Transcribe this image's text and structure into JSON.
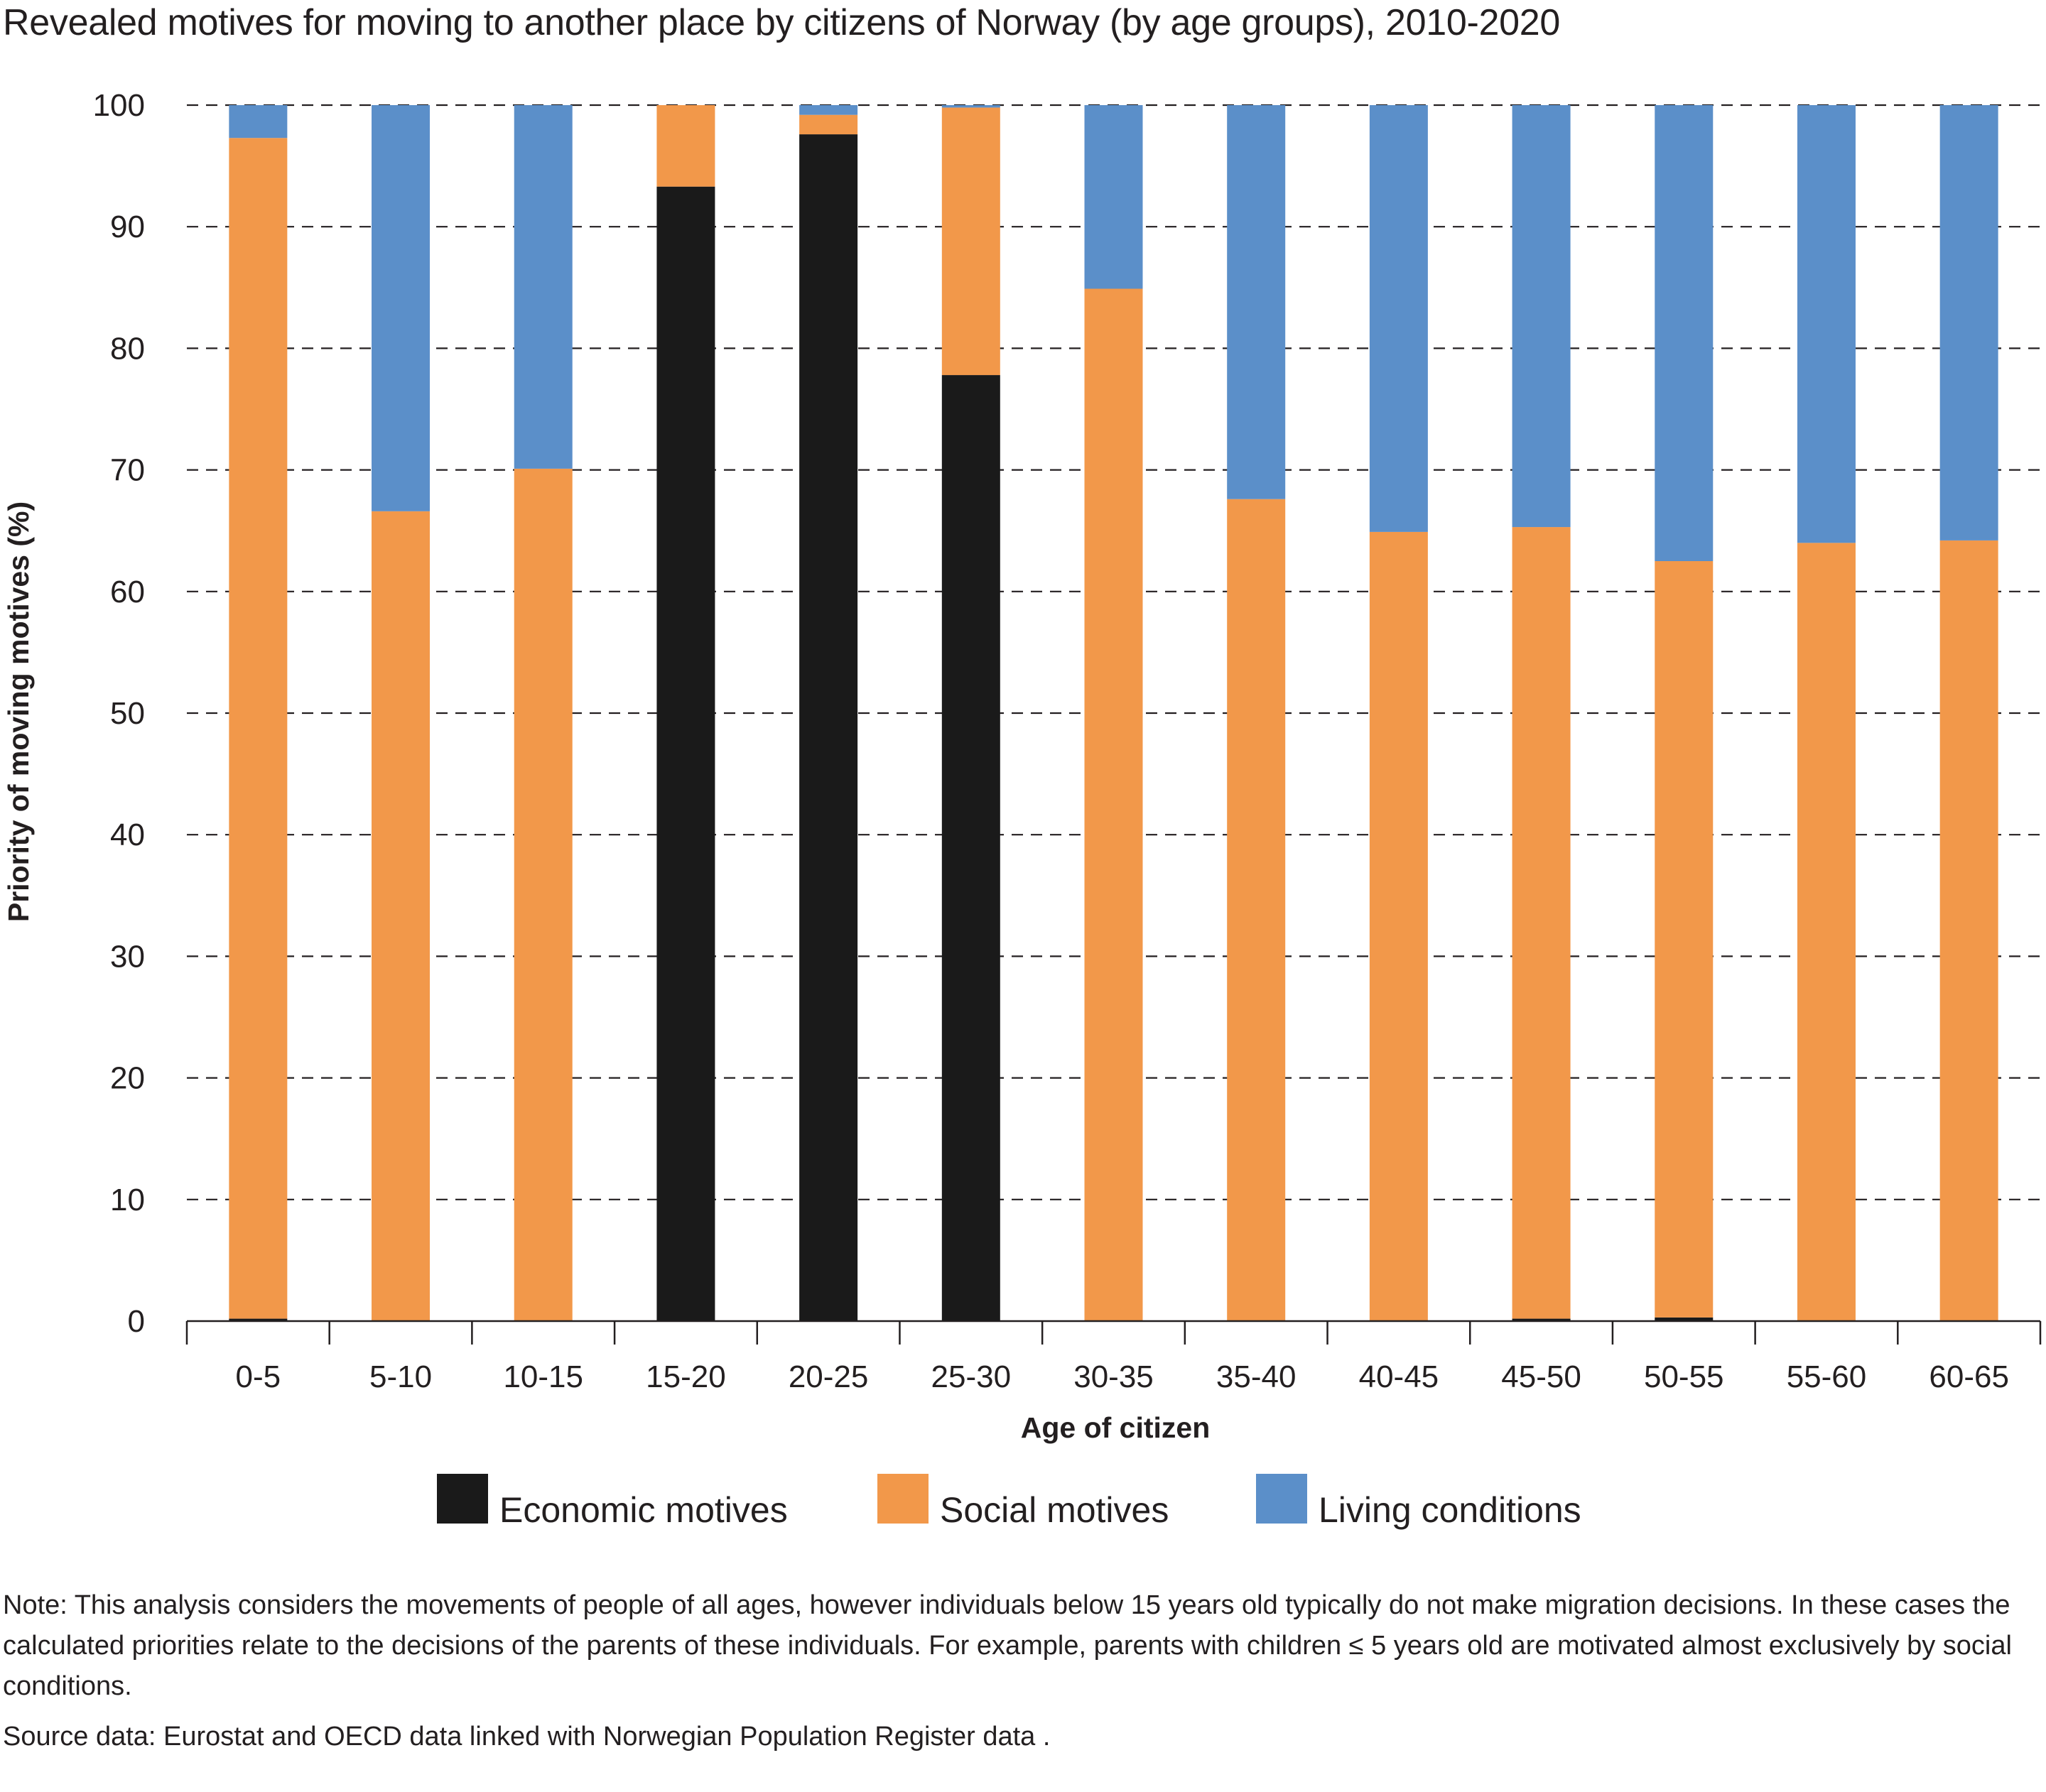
{
  "title": "Revealed motives for moving to another place by citizens of Norway (by age groups), 2010-2020",
  "note": "Note: This analysis considers the movements of people of all ages, however individuals below 15 years old typically do not make migration decisions. In these cases the calculated priorities relate to the decisions of the parents of these individuals. For example, parents with children ≤ 5 years old are motivated almost exclusively by social conditions.",
  "source": "Source data: Eurostat and OECD data linked with Norwegian Population Register data .",
  "chart_data": {
    "type": "bar",
    "stacked": true,
    "xlabel": "Age of citizen",
    "ylabel": "Priority of  moving motives (%)",
    "ylim": [
      0,
      100
    ],
    "yticks": [
      0,
      10,
      20,
      30,
      40,
      50,
      60,
      70,
      80,
      90,
      100
    ],
    "grid": "horizontal dashed",
    "legend_position": "bottom",
    "categories": [
      "0-5",
      "5-10",
      "10-15",
      "15-20",
      "20-25",
      "25-30",
      "30-35",
      "35-40",
      "40-45",
      "45-50",
      "50-55",
      "55-60",
      "60-65"
    ],
    "series": [
      {
        "name": "Economic motives",
        "color": "#1a1a1a",
        "values": [
          0.2,
          0,
          0,
          93.3,
          97.6,
          77.8,
          0,
          0,
          0,
          0.2,
          0.3,
          0,
          0
        ]
      },
      {
        "name": "Social motives",
        "color": "#f2984a",
        "values": [
          97.1,
          66.6,
          70.1,
          6.7,
          1.6,
          22.0,
          84.9,
          67.6,
          64.9,
          65.1,
          62.2,
          64.0,
          64.2
        ]
      },
      {
        "name": "Living conditions",
        "color": "#5b8fc9",
        "values": [
          2.7,
          33.4,
          29.9,
          0,
          0.8,
          0.2,
          15.1,
          32.4,
          35.1,
          34.7,
          37.5,
          36.0,
          35.8
        ]
      }
    ]
  }
}
